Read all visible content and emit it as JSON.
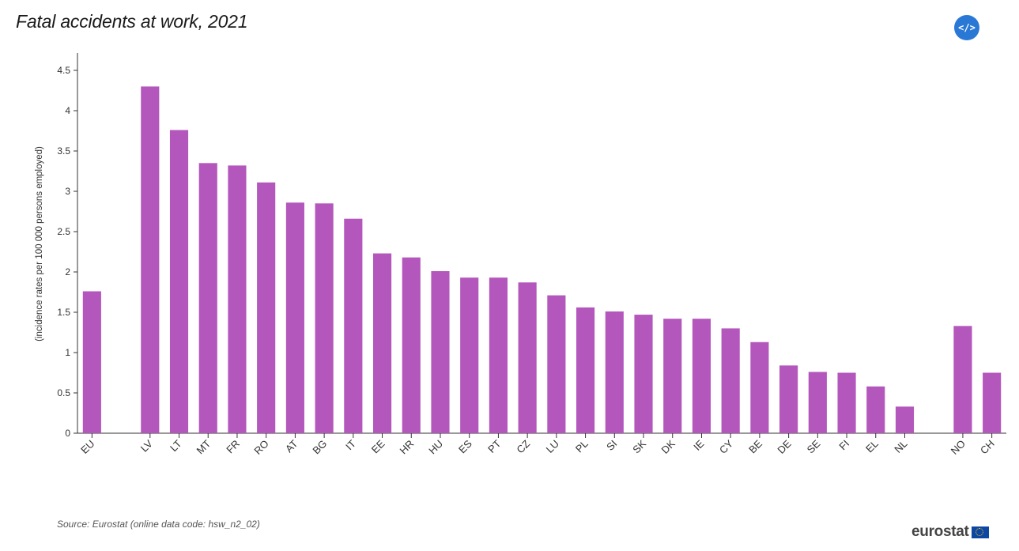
{
  "header": {
    "title": "Fatal accidents at work, 2021",
    "embed_label": "</>"
  },
  "footer": {
    "source": "Source: Eurostat (online data code: hsw_n2_02)",
    "logo_text": "eurostat"
  },
  "chart_data": {
    "type": "bar",
    "title": "Fatal accidents at work, 2021",
    "xlabel": "",
    "ylabel": "(incidence rates per 100 000 persons employed)",
    "ylim": [
      0,
      4.5
    ],
    "yticks": [
      0,
      0.5,
      1,
      1.5,
      2,
      2.5,
      3,
      3.5,
      4,
      4.5
    ],
    "ytick_labels": [
      "0",
      "0.5",
      "1",
      "1.5",
      "2",
      "2.5",
      "3",
      "3.5",
      "4",
      "4.5"
    ],
    "bar_color": "#b357bc",
    "categories": [
      "EU",
      "",
      "LV",
      "LT",
      "MT",
      "FR",
      "RO",
      "AT",
      "BG",
      "IT",
      "EE",
      "HR",
      "HU",
      "ES",
      "PT",
      "CZ",
      "LU",
      "PL",
      "SI",
      "SK",
      "DK",
      "IE",
      "CY",
      "BE",
      "DE",
      "SE",
      "FI",
      "EL",
      "NL",
      "",
      "NO",
      "CH"
    ],
    "values": [
      1.76,
      null,
      4.3,
      3.76,
      3.35,
      3.32,
      3.11,
      2.86,
      2.85,
      2.66,
      2.23,
      2.18,
      2.01,
      1.93,
      1.93,
      1.87,
      1.71,
      1.56,
      1.51,
      1.47,
      1.42,
      1.42,
      1.3,
      1.13,
      0.84,
      0.76,
      0.75,
      0.58,
      0.33,
      null,
      1.33,
      0.75
    ]
  }
}
